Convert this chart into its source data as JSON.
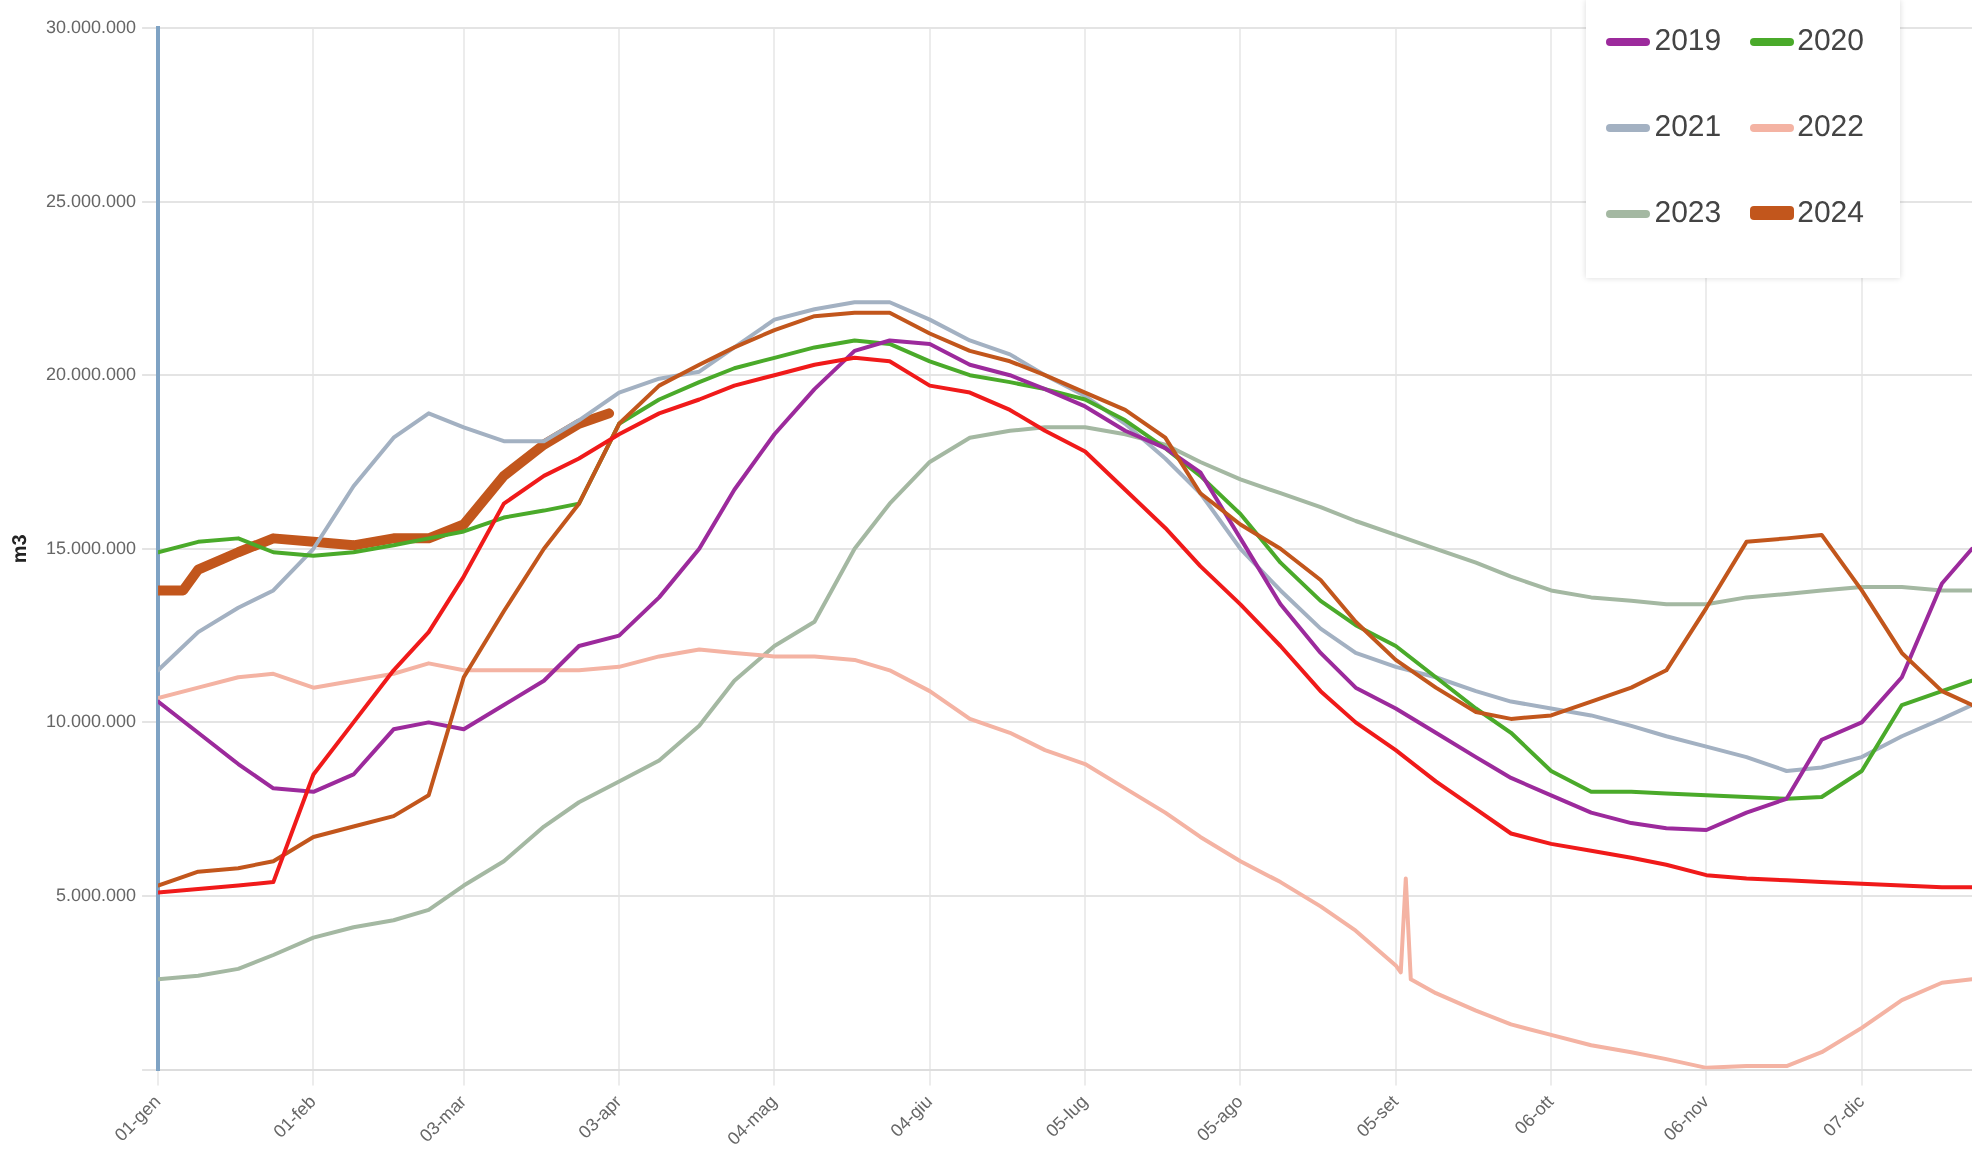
{
  "chart_data": {
    "type": "line",
    "ylabel": "m3",
    "legend": "top right",
    "grid": true,
    "x": [
      "--01-01",
      "--01-09",
      "--01-17",
      "--01-24",
      "--02-01",
      "--02-09",
      "--02-17",
      "--02-24",
      "--03-03",
      "--03-11",
      "--03-19",
      "--03-26",
      "--04-03",
      "--04-11",
      "--04-19",
      "--04-26",
      "--05-04",
      "--05-12",
      "--05-20",
      "--05-27",
      "--06-04",
      "--06-12",
      "--06-20",
      "--06-27",
      "--07-05",
      "--07-13",
      "--07-21",
      "--07-28",
      "--08-05",
      "--08-13",
      "--08-21",
      "--08-28",
      "--09-05",
      "--09-13",
      "--09-21",
      "--09-28",
      "--10-06",
      "--10-14",
      "--10-22",
      "--10-29",
      "--11-06",
      "--11-14",
      "--11-22",
      "--11-29",
      "--12-07",
      "--12-15",
      "--12-23",
      "--12-29"
    ],
    "xlim": [
      "--01-01",
      "--12-29"
    ],
    "xticks": [
      {
        "value": "--01-01",
        "label": "01-gen"
      },
      {
        "value": "--02-01",
        "label": "01-feb"
      },
      {
        "value": "--03-03",
        "label": "03-mar"
      },
      {
        "value": "--04-03",
        "label": "03-apr"
      },
      {
        "value": "--05-04",
        "label": "04-mag"
      },
      {
        "value": "--06-04",
        "label": "04-giu"
      },
      {
        "value": "--07-05",
        "label": "05-lug"
      },
      {
        "value": "--08-05",
        "label": "05-ago"
      },
      {
        "value": "--09-05",
        "label": "05-set"
      },
      {
        "value": "--10-06",
        "label": "06-ott"
      },
      {
        "value": "--11-06",
        "label": "06-nov"
      },
      {
        "value": "--12-07",
        "label": "07-dic"
      }
    ],
    "ylim": [
      0,
      30000000
    ],
    "yticks": [
      {
        "value": 0,
        "label": null
      },
      {
        "value": 5000000,
        "label": "5.000.000"
      },
      {
        "value": 10000000,
        "label": "10.000.000"
      },
      {
        "value": 15000000,
        "label": "15.000.000"
      },
      {
        "value": 20000000,
        "label": "20.000.000"
      },
      {
        "value": 25000000,
        "label": "25.000.000"
      },
      {
        "value": 30000000,
        "label": "30.000.000"
      }
    ],
    "series": [
      {
        "color": "#f01a1a",
        "values": [
          5100000,
          5200000,
          5300000,
          5400000,
          8500000,
          10000000,
          11500000,
          12600000,
          14200000,
          16300000,
          17100000,
          17600000,
          18300000,
          18900000,
          19300000,
          19700000,
          20000000,
          20300000,
          20500000,
          20400000,
          19700000,
          19500000,
          19000000,
          18400000,
          17800000,
          16700000,
          15600000,
          14500000,
          13400000,
          12200000,
          10900000,
          10000000,
          9200000,
          8300000,
          7500000,
          6800000,
          6500000,
          6300000,
          6100000,
          5900000,
          5600000,
          5500000,
          5450000,
          5400000,
          5350000,
          5300000,
          5250000,
          5250000
        ]
      },
      {
        "color": "#c2561c",
        "values": [
          5300000,
          5700000,
          5800000,
          6000000,
          6700000,
          7000000,
          7300000,
          7900000,
          11300000,
          13200000,
          15000000,
          16300000,
          18600000,
          19700000,
          20300000,
          20800000,
          21300000,
          21700000,
          21800000,
          21800000,
          21200000,
          20700000,
          20400000,
          20000000,
          19500000,
          19000000,
          18200000,
          16600000,
          15700000,
          15000000,
          14100000,
          12900000,
          11800000,
          11000000,
          10300000,
          10100000,
          10200000,
          10600000,
          11000000,
          11500000,
          13300000,
          15200000,
          15300000,
          15400000,
          13800000,
          12000000,
          10900000,
          10500000
        ]
      },
      {
        "name": "2019",
        "color": "#9c2a9c",
        "values": [
          10600000,
          9700000,
          8800000,
          8100000,
          8000000,
          8500000,
          9800000,
          10000000,
          9800000,
          10500000,
          11200000,
          12200000,
          12500000,
          13600000,
          15000000,
          16700000,
          18300000,
          19600000,
          20700000,
          21000000,
          20900000,
          20300000,
          20000000,
          19600000,
          19100000,
          18400000,
          17900000,
          17200000,
          15300000,
          13400000,
          12000000,
          11000000,
          10400000,
          9700000,
          9000000,
          8400000,
          7900000,
          7400000,
          7100000,
          6950000,
          6900000,
          7400000,
          7800000,
          9500000,
          10000000,
          11300000,
          14000000,
          15000000
        ]
      },
      {
        "name": "2020",
        "color": "#4aaa2a",
        "values": [
          14900000,
          15200000,
          15300000,
          14900000,
          14800000,
          14900000,
          15100000,
          15300000,
          15500000,
          15900000,
          16100000,
          16300000,
          18600000,
          19300000,
          19800000,
          20200000,
          20500000,
          20800000,
          21000000,
          20900000,
          20400000,
          20000000,
          19800000,
          19600000,
          19300000,
          18700000,
          17900000,
          17100000,
          16000000,
          14600000,
          13500000,
          12800000,
          12200000,
          11300000,
          10400000,
          9700000,
          8600000,
          8000000,
          8000000,
          7950000,
          7900000,
          7850000,
          7800000,
          7850000,
          8600000,
          10500000,
          10900000,
          11200000
        ]
      },
      {
        "name": "2021",
        "color": "#a3b1c2",
        "values": [
          11500000,
          12600000,
          13300000,
          13800000,
          15000000,
          16800000,
          18200000,
          18900000,
          18500000,
          18100000,
          18100000,
          18700000,
          19500000,
          19900000,
          20100000,
          20800000,
          21600000,
          21900000,
          22100000,
          22100000,
          21600000,
          21000000,
          20600000,
          20000000,
          19400000,
          18600000,
          17600000,
          16600000,
          15000000,
          13800000,
          12700000,
          12000000,
          11600000,
          11300000,
          10900000,
          10600000,
          10400000,
          10200000,
          9900000,
          9600000,
          9300000,
          9000000,
          8600000,
          8700000,
          9000000,
          9600000,
          10100000,
          10500000
        ]
      },
      {
        "name": "2022",
        "color": "#f4b3a3",
        "x": [
          "--01-01",
          "--01-09",
          "--01-17",
          "--01-24",
          "--02-01",
          "--02-09",
          "--02-17",
          "--02-24",
          "--03-03",
          "--03-11",
          "--03-19",
          "--03-26",
          "--04-03",
          "--04-11",
          "--04-19",
          "--04-26",
          "--05-04",
          "--05-12",
          "--05-20",
          "--05-27",
          "--06-04",
          "--06-12",
          "--06-20",
          "--06-27",
          "--07-05",
          "--07-13",
          "--07-21",
          "--07-28",
          "--08-05",
          "--08-13",
          "--08-21",
          "--08-28",
          "--09-05",
          "--09-06",
          "--09-07",
          "--09-08",
          "--09-13",
          "--09-21",
          "--09-28",
          "--10-06",
          "--10-14",
          "--10-22",
          "--10-29",
          "--11-06",
          "--11-14",
          "--11-22",
          "--11-29",
          "--12-07",
          "--12-15",
          "--12-23",
          "--12-29"
        ],
        "values": [
          10700000,
          11000000,
          11300000,
          11400000,
          11000000,
          11200000,
          11400000,
          11700000,
          11500000,
          11500000,
          11500000,
          11500000,
          11600000,
          11900000,
          12100000,
          12000000,
          11900000,
          11900000,
          11800000,
          11500000,
          10900000,
          10100000,
          9700000,
          9200000,
          8800000,
          8100000,
          7400000,
          6700000,
          6000000,
          5400000,
          4700000,
          4000000,
          3000000,
          2800000,
          5500000,
          2600000,
          2200000,
          1700000,
          1300000,
          1000000,
          700000,
          500000,
          300000,
          50000,
          100000,
          100000,
          500000,
          1200000,
          2000000,
          2500000,
          2600000
        ]
      },
      {
        "name": "2023",
        "color": "#a4b8a2",
        "values": [
          2600000,
          2700000,
          2900000,
          3300000,
          3800000,
          4100000,
          4300000,
          4600000,
          5300000,
          6000000,
          7000000,
          7700000,
          8300000,
          8900000,
          9900000,
          11200000,
          12200000,
          12900000,
          15000000,
          16300000,
          17500000,
          18200000,
          18400000,
          18500000,
          18500000,
          18300000,
          18000000,
          17500000,
          17000000,
          16600000,
          16200000,
          15800000,
          15400000,
          15000000,
          14600000,
          14200000,
          13800000,
          13600000,
          13500000,
          13400000,
          13400000,
          13600000,
          13700000,
          13800000,
          13900000,
          13900000,
          13800000,
          13800000
        ]
      },
      {
        "name": "2024",
        "color": "#c2561c",
        "x": [
          "--01-01",
          "--01-06",
          "--01-09",
          "--01-17",
          "--01-24",
          "--02-01",
          "--02-09",
          "--02-17",
          "--02-24",
          "--03-03",
          "--03-11",
          "--03-19",
          "--03-26",
          "--04-01"
        ],
        "values": [
          13800000,
          13800000,
          14400000,
          14900000,
          15300000,
          15200000,
          15100000,
          15300000,
          15300000,
          15700000,
          17100000,
          18000000,
          18600000,
          18900000
        ]
      }
    ]
  }
}
